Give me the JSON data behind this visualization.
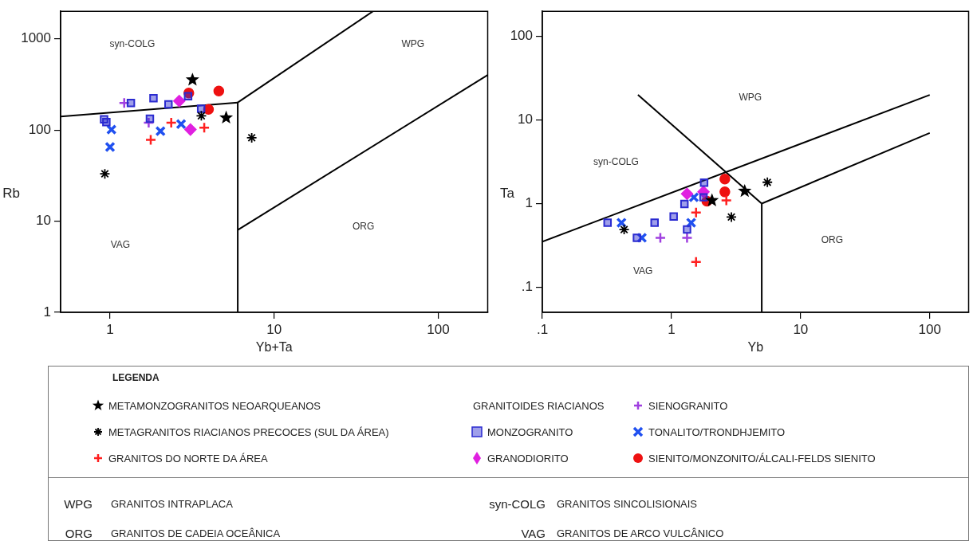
{
  "chart_data": [
    {
      "type": "scatter",
      "xlabel": "Yb+Ta",
      "ylabel": "Rb",
      "log": "xy",
      "grid": false,
      "legend": "bottom",
      "legend_title": "LEGENDA",
      "xlim": [
        0.5,
        200
      ],
      "ylim": [
        1,
        2000
      ],
      "xticks": [
        1,
        10,
        100
      ],
      "yticks": [
        1,
        10,
        100,
        1000
      ],
      "annotations": [
        "syn-COLG",
        "WPG",
        "ORG",
        "VAG",
        "GRANITOIDES RIACIANOS",
        "WPG",
        "GRANITOS INTRAPLACA",
        "syn-COLG",
        "GRANITOS SINCOLISIONAIS",
        "ORG",
        "GRANITOS DE CADEIA OCEÂNICA",
        "VAG",
        "GRANITOS DE ARCO VULCÂNICO"
      ],
      "series": [
        {
          "type": "scatter",
          "name": "METAMONZOGRANITOS NEOARQUEANOS",
          "color": "#000000",
          "marker": "star",
          "x": [
            3.18,
            5.1
          ],
          "values": [
            355,
            136
          ]
        },
        {
          "type": "scatter",
          "name": "METAGRANITOS RIACIANOS PRECOCES (SUL DA ÁREA)",
          "color": "#000000",
          "marker": "cross",
          "x": [
            0.93,
            3.6,
            7.3
          ],
          "values": [
            33,
            143,
            82
          ]
        },
        {
          "type": "scatter",
          "name": "GRANITOS DO NORTE DA ÁREA",
          "color": "#ff2020",
          "marker": "plus",
          "x": [
            1.77,
            2.36,
            3.75
          ],
          "values": [
            78,
            120,
            106
          ]
        },
        {
          "type": "scatter",
          "name": "MONZOGRANITO",
          "color": "#2a2ad0",
          "marker": "square",
          "x": [
            1.34,
            1.84,
            2.27,
            2.99,
            3.59,
            0.92,
            0.95,
            1.75
          ],
          "values": [
            198,
            223,
            191,
            235,
            171,
            131,
            122,
            133
          ]
        },
        {
          "type": "scatter",
          "name": "GRANODIORITO",
          "color": "#e020e0",
          "marker": "diamond",
          "x": [
            2.64,
            3.09
          ],
          "values": [
            208,
            101
          ]
        },
        {
          "type": "scatter",
          "name": "SIENOGRANITO",
          "color": "#a040e0",
          "marker": "plus",
          "x": [
            1.22,
            1.72
          ],
          "values": [
            198,
            120
          ]
        },
        {
          "type": "scatter",
          "name": "TONALITO/TRONDHJEMITO",
          "color": "#2050f0",
          "marker": "x",
          "x": [
            1.02,
            1.0,
            2.03,
            2.71
          ],
          "values": [
            101,
            65,
            97,
            116
          ]
        },
        {
          "type": "scatter",
          "name": "SIENITO/MONZONITO/ÁLCALI-FELDS SIENITO",
          "color": "#ee1111",
          "marker": "circle",
          "x": [
            3.02,
            3.98,
            4.6
          ],
          "values": [
            254,
            168,
            267
          ]
        },
        {
          "type": "line",
          "color": "#000000",
          "marker": "none",
          "x": [
            0.5,
            6
          ],
          "values": [
            140,
            200
          ]
        },
        {
          "type": "line",
          "color": "#000000",
          "marker": "none",
          "x": [
            6,
            6
          ],
          "values": [
            1,
            200
          ]
        },
        {
          "type": "line",
          "color": "#000000",
          "marker": "none",
          "x": [
            6,
            40
          ],
          "values": [
            200,
            2000
          ]
        },
        {
          "type": "line",
          "color": "#000000",
          "marker": "none",
          "x": [
            6,
            200
          ],
          "values": [
            8,
            400
          ]
        }
      ]
    },
    {
      "type": "scatter",
      "xlabel": "Yb",
      "ylabel": "Ta",
      "log": "xy",
      "grid": false,
      "xlim": [
        0.1,
        200
      ],
      "ylim": [
        0.05,
        200
      ],
      "xticks": [
        {
          "value": 0.1,
          "label": ".1"
        },
        1,
        10,
        100
      ],
      "yticks": [
        {
          "value": 0.1,
          "label": ".1"
        },
        1,
        10,
        100
      ],
      "annotations": [
        "WPG",
        "syn-COLG",
        "VAG",
        "ORG"
      ],
      "series": [
        {
          "type": "scatter",
          "color": "#000000",
          "marker": "star",
          "x": [
            2.06,
            3.69
          ],
          "values": [
            1.09,
            1.41
          ]
        },
        {
          "type": "scatter",
          "color": "#000000",
          "marker": "cross",
          "x": [
            0.43,
            2.91,
            5.53
          ],
          "values": [
            0.49,
            0.69,
            1.8
          ]
        },
        {
          "type": "scatter",
          "color": "#ff2020",
          "marker": "plus",
          "x": [
            1.55,
            1.55,
            2.66
          ],
          "values": [
            0.78,
            0.2,
            1.09
          ]
        },
        {
          "type": "scatter",
          "color": "#2a2ad0",
          "marker": "square",
          "x": [
            0.32,
            0.54,
            0.74,
            1.04,
            1.26,
            1.32,
            1.79,
            1.77
          ],
          "values": [
            0.59,
            0.39,
            0.59,
            0.7,
            0.99,
            0.49,
            1.78,
            1.19
          ]
        },
        {
          "type": "scatter",
          "color": "#e020e0",
          "marker": "diamond",
          "x": [
            1.32,
            1.77
          ],
          "values": [
            1.31,
            1.38
          ]
        },
        {
          "type": "scatter",
          "color": "#a040e0",
          "marker": "plus",
          "x": [
            0.82,
            1.32
          ],
          "values": [
            0.39,
            0.39
          ]
        },
        {
          "type": "scatter",
          "color": "#2050f0",
          "marker": "x",
          "x": [
            0.41,
            0.59,
            1.49,
            1.42
          ],
          "values": [
            0.59,
            0.39,
            1.19,
            0.59
          ]
        },
        {
          "type": "scatter",
          "color": "#ee1111",
          "marker": "circle",
          "x": [
            2.59,
            2.59,
            1.88
          ],
          "values": [
            1.97,
            1.38,
            1.07
          ]
        },
        {
          "type": "line",
          "color": "#000000",
          "marker": "none",
          "x": [
            0.1,
            100
          ],
          "values": [
            0.35,
            20
          ]
        },
        {
          "type": "line",
          "color": "#000000",
          "marker": "none",
          "x": [
            0.55,
            5
          ],
          "values": [
            20,
            1
          ]
        },
        {
          "type": "line",
          "color": "#000000",
          "marker": "none",
          "x": [
            5,
            5
          ],
          "values": [
            0.05,
            1
          ]
        },
        {
          "type": "line",
          "color": "#000000",
          "marker": "none",
          "x": [
            5,
            100
          ],
          "values": [
            1,
            7
          ]
        }
      ]
    }
  ]
}
